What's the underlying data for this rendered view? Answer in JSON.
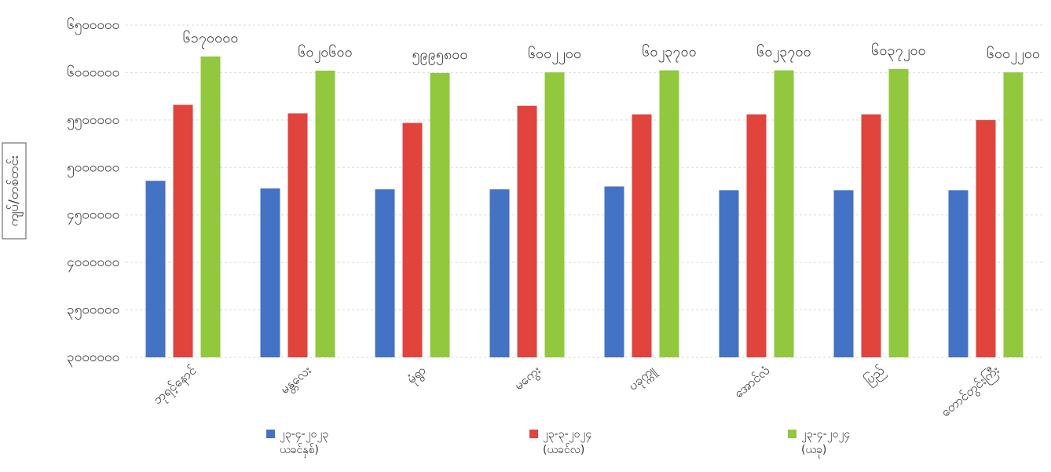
{
  "chart_data": {
    "type": "bar",
    "title": "",
    "xlabel": "",
    "ylabel": "ကျပ်/တစ်တင်း",
    "ylim": [
      3000000,
      6500000
    ],
    "yticks": [
      3000000,
      3500000,
      4000000,
      4500000,
      5000000,
      5500000,
      6000000,
      6500000
    ],
    "ytick_labels": [
      "၃၀၀၀၀၀၀",
      "၃၅၀၀၀၀၀",
      "၄၀၀၀၀၀၀",
      "၄၅၀၀၀၀၀",
      "၅၀၀၀၀၀၀",
      "၅၅၀၀၀၀၀",
      "၆၀၀၀၀၀၀",
      "၆၅၀၀၀၀၀"
    ],
    "categories": [
      "ဘုရင့်နောင်",
      "မန္တလေး",
      "မုံရွာ",
      "မကွေး",
      "ပခုက္ကူ",
      "အောင်လံ",
      "ပြည်",
      "တောင်တွင်းကြီး"
    ],
    "series": [
      {
        "name": "၂၃-၄-၂၀၂၃ (ယခင်နှစ်)",
        "color": "#4472c4",
        "values": [
          4860000,
          4780000,
          4770000,
          4770000,
          4800000,
          4760000,
          4760000,
          4760000
        ]
      },
      {
        "name": "၂၃-၃-၂၀၂၄ (ယခင်လ)",
        "color": "#e0443c",
        "values": [
          5660000,
          5570000,
          5470000,
          5650000,
          5560000,
          5560000,
          5560000,
          5500000
        ]
      },
      {
        "name": "၂၃-၄-၂၀၂၄ (ယခု)",
        "color": "#92c83e",
        "values": [
          6170000,
          6020600,
          5995800,
          6002200,
          6023700,
          6023700,
          6037200,
          6002200
        ],
        "data_labels": [
          "၆၁၇၀၀၀၀",
          "၆၀၂၀၆၀၀",
          "၅၉၉၅၈၀၀",
          "၆၀၀၂၂၀၀",
          "၆၀၂၃၇၀၀",
          "၆၀၂၃၇၀၀",
          "၆၀၃၇၂၀၀",
          "၆၀၀၂၂၀၀"
        ]
      }
    ],
    "legend": {
      "placement": "bottom",
      "entries": [
        {
          "line1": "၂၃-၄-၂၀၂၃",
          "line2": "ယခင်နှစ်)"
        },
        {
          "line1": "၂၃-၃-၂၀၂၄",
          "line2": "(ယခင်လ)"
        },
        {
          "line1": "၂၃-၄-၂၀၂၄",
          "line2": "(ယခု)"
        }
      ]
    },
    "grid": true
  }
}
